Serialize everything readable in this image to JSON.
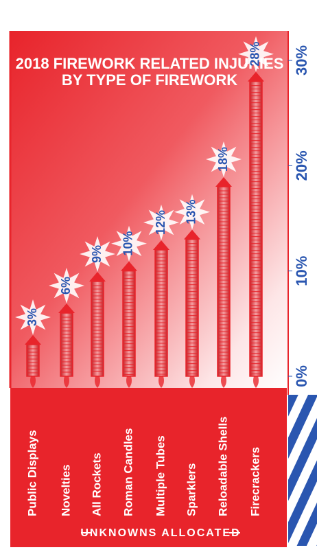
{
  "chart_data": {
    "type": "bar",
    "title": [
      "2018 FIREWORK RELATED INJURIES",
      "BY TYPE OF FIREWORK"
    ],
    "categories": [
      "Public Displays",
      "Novelties",
      "All Rockets",
      "Roman Candles",
      "Multiple Tubes",
      "Sparklers",
      "Reloadable Shells",
      "Firecrackers"
    ],
    "values": [
      3,
      6,
      9,
      10,
      12,
      13,
      18,
      28
    ],
    "value_labels": [
      "3%",
      "6%",
      "9%",
      "10%",
      "12%",
      "13%",
      "18%",
      "28%"
    ],
    "color": "#e8242b",
    "ylim": [
      0,
      30
    ],
    "yticks": [
      {
        "value": 0,
        "label": "0%"
      },
      {
        "value": 10,
        "label": "10%"
      },
      {
        "value": 20,
        "label": "20%"
      },
      {
        "value": 30,
        "label": "30%"
      }
    ],
    "annotation": "UNKNOWNS ALLOCATED"
  }
}
